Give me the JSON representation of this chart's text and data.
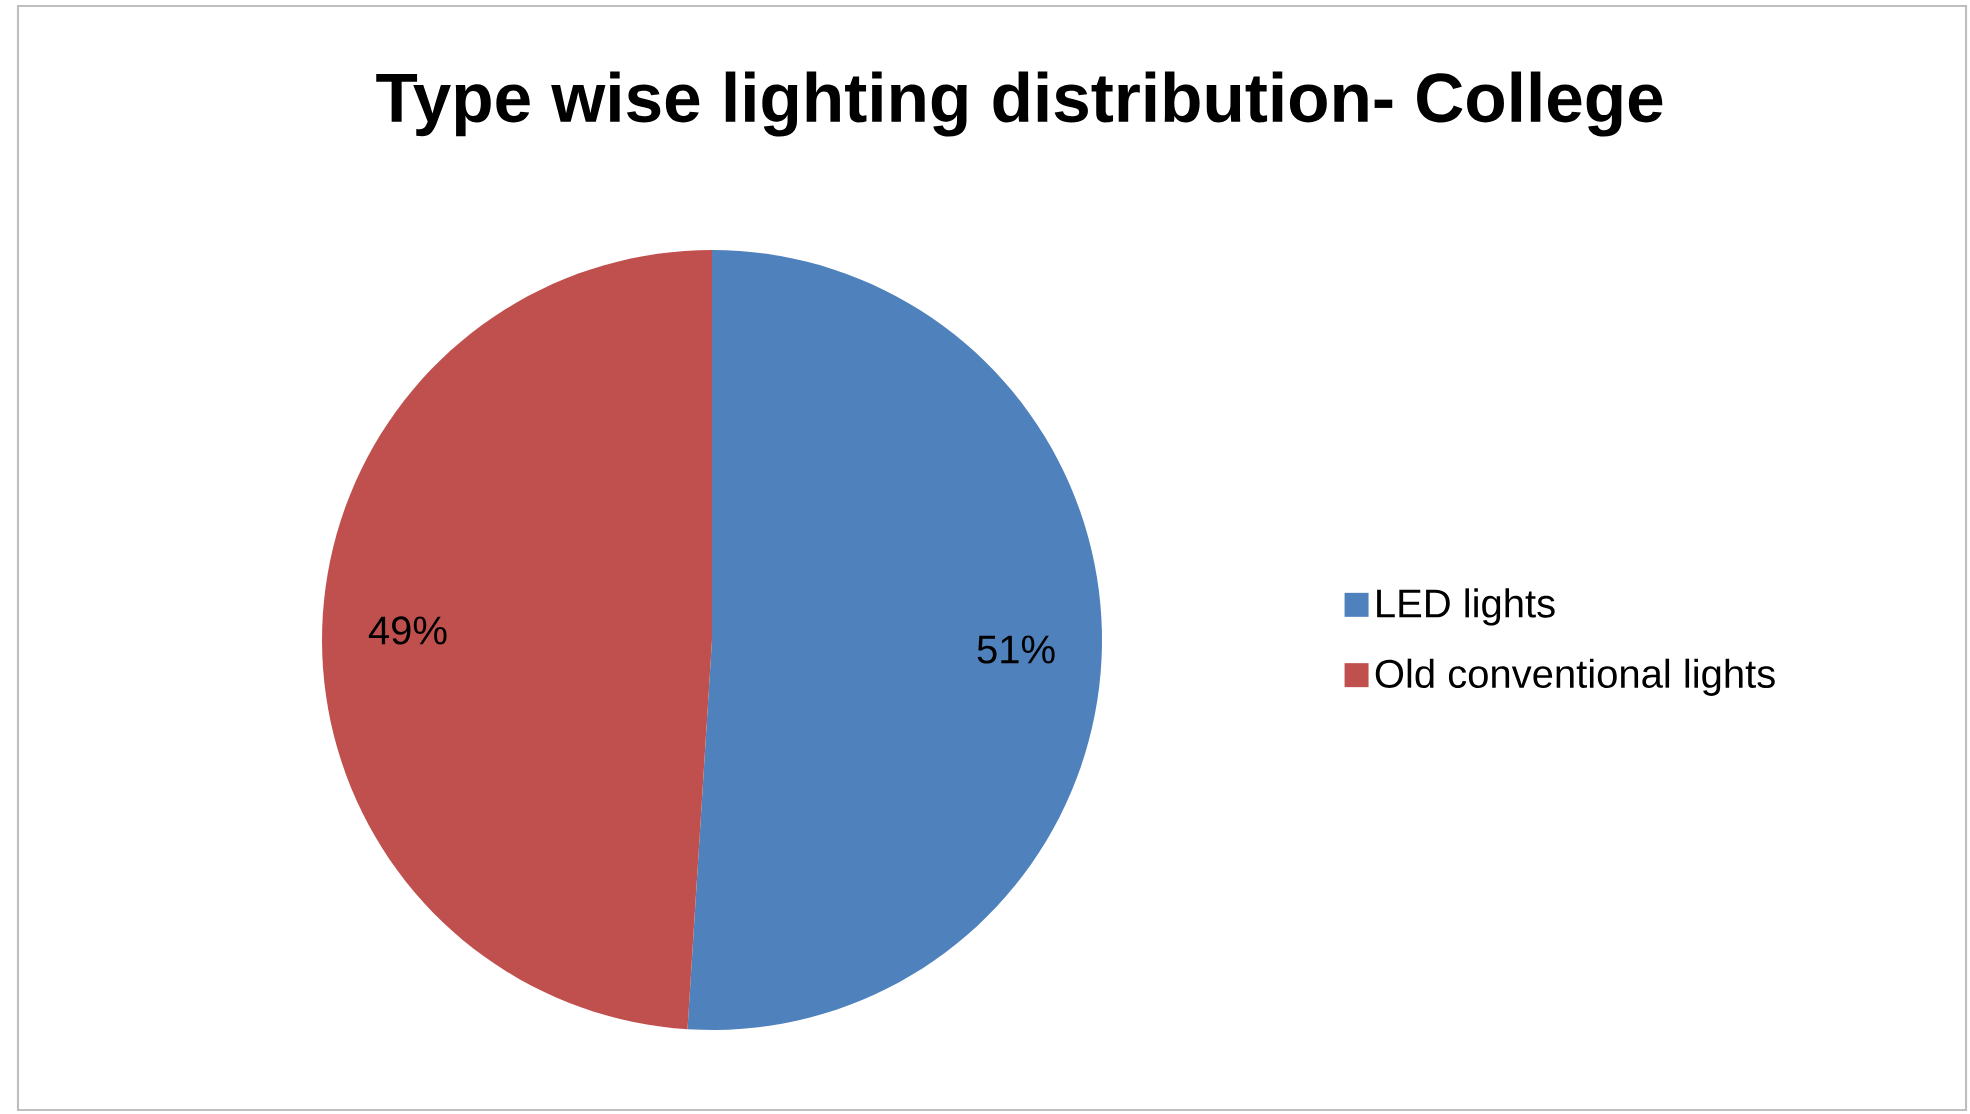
{
  "chart_data": {
    "type": "pie",
    "title": "Type wise lighting distribution- College",
    "categories": [
      "LED lights",
      "Old conventional lights"
    ],
    "values": [
      51,
      49
    ],
    "colors": [
      "#4f81bd",
      "#c0504d"
    ],
    "value_labels": [
      "51%",
      "49%"
    ],
    "legend": "right"
  }
}
